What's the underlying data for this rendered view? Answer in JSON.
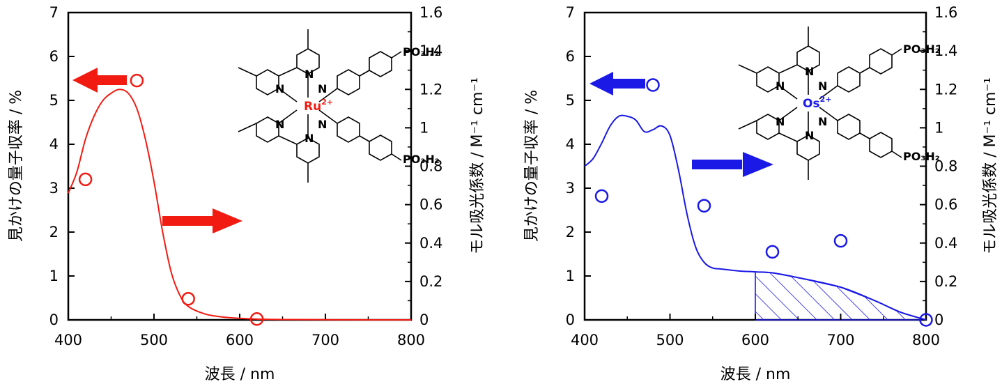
{
  "colors": {
    "ru": "#f11b12",
    "os": "#1a19e6",
    "axis": "#000000"
  },
  "chart_data": [
    {
      "type": "line",
      "title": "",
      "xlabel": "波長 / nm",
      "ylabel_left": "見かけの量子収率 / %",
      "ylabel_right": "モル吸光係数 / M⁻¹ cm⁻¹",
      "xlim": [
        400,
        800
      ],
      "xticks": [
        "400",
        "500",
        "600",
        "700",
        "800"
      ],
      "ylim_left": [
        0,
        7
      ],
      "yticks_left": [
        "0",
        "1",
        "2",
        "3",
        "4",
        "5",
        "6",
        "7"
      ],
      "ylim_right": [
        0,
        1.6
      ],
      "yticks_right": [
        "0",
        "0.2",
        "0.4",
        "0.6",
        "0.8",
        "1",
        "1.2",
        "1.4",
        "1.6"
      ],
      "color": "#f11b12",
      "series": [
        {
          "name": "",
          "axis": "right",
          "kind": "line",
          "x": [
            400,
            410,
            420,
            430,
            440,
            450,
            460,
            470,
            480,
            490,
            500,
            510,
            520,
            530,
            540,
            560,
            580,
            600,
            620,
            650,
            700,
            750,
            800
          ],
          "y": [
            0.66,
            0.77,
            0.94,
            1.06,
            1.14,
            1.18,
            1.2,
            1.18,
            1.1,
            0.94,
            0.72,
            0.46,
            0.25,
            0.13,
            0.07,
            0.03,
            0.015,
            0.008,
            0.004,
            0.002,
            0.001,
            0,
            0
          ]
        },
        {
          "name": "",
          "axis": "left",
          "kind": "scatter",
          "x": [
            420,
            480,
            540,
            620
          ],
          "y": [
            3.2,
            5.45,
            0.48,
            0.02
          ]
        }
      ],
      "molecule": {
        "metal": "Ru",
        "charge": "2+",
        "group": "PO₃H₂",
        "n": "N"
      }
    },
    {
      "type": "line",
      "title": "",
      "xlabel": "波長 / nm",
      "ylabel_left": "見かけの量子収率 / %",
      "ylabel_right": "モル吸光係数 / M⁻¹ cm⁻¹",
      "xlim": [
        400,
        800
      ],
      "xticks": [
        "400",
        "500",
        "600",
        "700",
        "800"
      ],
      "ylim_left": [
        0,
        7
      ],
      "yticks_left": [
        "0",
        "1",
        "2",
        "3",
        "4",
        "5",
        "6",
        "7"
      ],
      "ylim_right": [
        0,
        1.6
      ],
      "yticks_right": [
        "0",
        "0.2",
        "0.4",
        "0.6",
        "0.8",
        "1",
        "1.2",
        "1.4",
        "1.6"
      ],
      "color": "#1a19e6",
      "series": [
        {
          "name": "",
          "axis": "right",
          "kind": "line",
          "x": [
            400,
            410,
            420,
            430,
            440,
            450,
            460,
            470,
            480,
            490,
            500,
            510,
            520,
            530,
            540,
            550,
            560,
            580,
            600,
            620,
            650,
            700,
            740,
            770,
            800
          ],
          "y": [
            0.8,
            0.84,
            0.92,
            1.01,
            1.06,
            1.06,
            1.04,
            0.98,
            0.99,
            1.01,
            0.96,
            0.78,
            0.55,
            0.38,
            0.3,
            0.27,
            0.265,
            0.255,
            0.25,
            0.245,
            0.22,
            0.17,
            0.1,
            0.04,
            0.0
          ]
        },
        {
          "name": "",
          "axis": "left",
          "kind": "scatter",
          "x": [
            420,
            480,
            540,
            620,
            700,
            800
          ],
          "y": [
            2.82,
            5.35,
            2.6,
            1.55,
            1.8,
            0.0
          ]
        }
      ],
      "shade_from_x": 600,
      "molecule": {
        "metal": "Os",
        "charge": "2+",
        "group": "PO₃H₂",
        "n": "N"
      }
    }
  ]
}
